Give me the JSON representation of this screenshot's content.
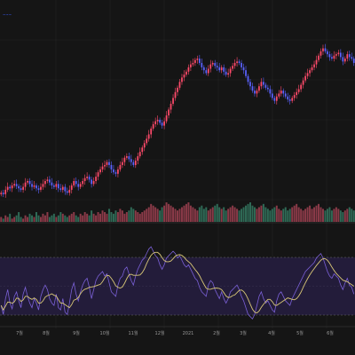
{
  "legend": {
    "symbol": "~~~"
  },
  "colors": {
    "background": "#151515",
    "grid": "#242424",
    "up": "#ff4a6a",
    "down": "#5a62ff",
    "volume_up": "#8a3a48",
    "volume_down": "#2f6a56",
    "rsi_panel": "#231c3a",
    "rsi_line": "#7a60d6",
    "rsi_signal": "#d8c777",
    "rsi_band": "#6a6a6a"
  },
  "chart_data": {
    "type": "candlestick",
    "x_tick_labels": [
      "7월",
      "8월",
      "9월",
      "10월",
      "11월",
      "12월",
      "2021",
      "2월",
      "3월",
      "4월",
      "5월",
      "6월"
    ],
    "price_series": {
      "name": "",
      "close": [
        220,
        218,
        224,
        228,
        226,
        230,
        232,
        229,
        226,
        224,
        228,
        234,
        236,
        232,
        228,
        230,
        226,
        224,
        228,
        232,
        236,
        238,
        234,
        230,
        228,
        232,
        226,
        224,
        228,
        222,
        220,
        224,
        230,
        236,
        232,
        228,
        232,
        236,
        240,
        242,
        238,
        232,
        236,
        242,
        248,
        252,
        256,
        258,
        262,
        258,
        252,
        248,
        246,
        252,
        258,
        262,
        268,
        270,
        266,
        262,
        258,
        264,
        270,
        276,
        282,
        288,
        294,
        300,
        308,
        314,
        318,
        320,
        316,
        312,
        318,
        326,
        334,
        342,
        350,
        358,
        364,
        372,
        378,
        382,
        386,
        392,
        396,
        398,
        402,
        404,
        398,
        392,
        388,
        384,
        390,
        396,
        398,
        394,
        392,
        388,
        392,
        386,
        382,
        384,
        390,
        394,
        398,
        400,
        398,
        392,
        388,
        380,
        372,
        366,
        360,
        356,
        360,
        366,
        372,
        368,
        364,
        362,
        356,
        350,
        346,
        352,
        356,
        360,
        356,
        352,
        348,
        346,
        350,
        354,
        358,
        362,
        368,
        374,
        380,
        384,
        388,
        392,
        396,
        402,
        408,
        414,
        418,
        414,
        410,
        406,
        404,
        408,
        410,
        412,
        406,
        400,
        404,
        410,
        406,
        404,
        398
      ],
      "y_min": 180,
      "y_max": 460
    },
    "volume": [
      3,
      2,
      4,
      3,
      5,
      2,
      3,
      4,
      6,
      3,
      2,
      4,
      3,
      5,
      4,
      3,
      6,
      4,
      3,
      5,
      4,
      6,
      3,
      4,
      5,
      3,
      4,
      6,
      5,
      4,
      3,
      4,
      5,
      6,
      4,
      3,
      5,
      4,
      6,
      5,
      4,
      7,
      5,
      4,
      6,
      5,
      7,
      6,
      5,
      8,
      6,
      5,
      7,
      6,
      8,
      7,
      5,
      6,
      7,
      9,
      8,
      7,
      6,
      5,
      6,
      7,
      8,
      9,
      11,
      10,
      9,
      8,
      7,
      9,
      10,
      12,
      11,
      10,
      9,
      8,
      7,
      8,
      9,
      10,
      11,
      12,
      10,
      9,
      8,
      7,
      9,
      10,
      8,
      9,
      7,
      8,
      9,
      10,
      11,
      9,
      8,
      9,
      7,
      8,
      9,
      10,
      9,
      8,
      7,
      8,
      9,
      10,
      11,
      12,
      10,
      9,
      8,
      9,
      10,
      11,
      9,
      8,
      7,
      8,
      9,
      10,
      8,
      7,
      8,
      9,
      7,
      8,
      9,
      10,
      11,
      9,
      8,
      7,
      8,
      9,
      10,
      8,
      9,
      10,
      11,
      9,
      8,
      7,
      8,
      9,
      7,
      8,
      9,
      8,
      7,
      6,
      7,
      8,
      9,
      8,
      7
    ],
    "rsi": [
      38,
      30,
      44,
      52,
      40,
      35,
      46,
      50,
      42,
      36,
      48,
      54,
      46,
      40,
      36,
      44,
      40,
      34,
      46,
      52,
      56,
      52,
      44,
      40,
      38,
      48,
      36,
      34,
      44,
      32,
      30,
      40,
      52,
      58,
      48,
      42,
      50,
      56,
      60,
      62,
      54,
      44,
      52,
      60,
      64,
      66,
      68,
      64,
      66,
      58,
      50,
      48,
      46,
      56,
      62,
      64,
      70,
      72,
      66,
      60,
      56,
      64,
      70,
      74,
      78,
      80,
      84,
      88,
      90,
      86,
      82,
      80,
      74,
      70,
      74,
      80,
      82,
      84,
      86,
      84,
      80,
      82,
      78,
      74,
      72,
      74,
      70,
      66,
      62,
      60,
      54,
      50,
      48,
      46,
      56,
      60,
      58,
      52,
      48,
      44,
      50,
      44,
      40,
      44,
      50,
      52,
      54,
      56,
      52,
      46,
      42,
      36,
      30,
      28,
      26,
      30,
      38,
      46,
      50,
      44,
      40,
      42,
      38,
      34,
      32,
      42,
      48,
      50,
      46,
      42,
      40,
      38,
      44,
      48,
      52,
      56,
      60,
      64,
      68,
      70,
      72,
      74,
      76,
      80,
      82,
      84,
      80,
      74,
      68,
      64,
      62,
      66,
      64,
      62,
      56,
      52,
      58,
      62,
      56,
      54,
      48
    ],
    "rsi_levels": [
      70,
      30
    ]
  }
}
